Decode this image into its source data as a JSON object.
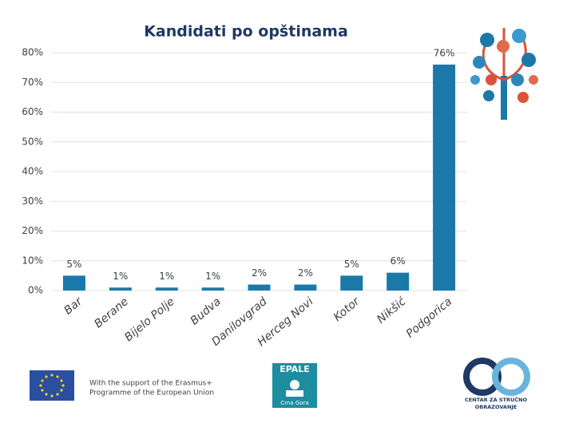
{
  "chart_data": {
    "type": "bar",
    "title": "Kandidati po opštinama",
    "categories": [
      "Bar",
      "Berane",
      "Bijelo Polje",
      "Budva",
      "Danilovgrad",
      "Herceg Novi",
      "Kotor",
      "Nikšić",
      "Podgorica"
    ],
    "values": [
      5,
      1,
      1,
      1,
      2,
      2,
      5,
      6,
      76
    ],
    "value_labels": [
      "5%",
      "1%",
      "1%",
      "1%",
      "2%",
      "2%",
      "5%",
      "6%",
      "76%"
    ],
    "color": "#1b79a9",
    "ylim": [
      0,
      80
    ],
    "yticks": [
      {
        "value": 0,
        "label": "0%"
      },
      {
        "value": 10,
        "label": "10%"
      },
      {
        "value": 20,
        "label": "20%"
      },
      {
        "value": 30,
        "label": "30%"
      },
      {
        "value": 40,
        "label": "40%"
      },
      {
        "value": 50,
        "label": "50%"
      },
      {
        "value": 60,
        "label": "60%"
      },
      {
        "value": 70,
        "label": "70%"
      },
      {
        "value": 80,
        "label": "80%"
      }
    ],
    "grid": true
  },
  "footer": {
    "support": [
      "With the support of the Erasmus+",
      "Programme of the European Union"
    ],
    "epale": "EPALE",
    "epale_sub": "Crna Gora",
    "cso": [
      "CENTAR ZA STRUČNO",
      "OBRAZOVANJE"
    ]
  }
}
